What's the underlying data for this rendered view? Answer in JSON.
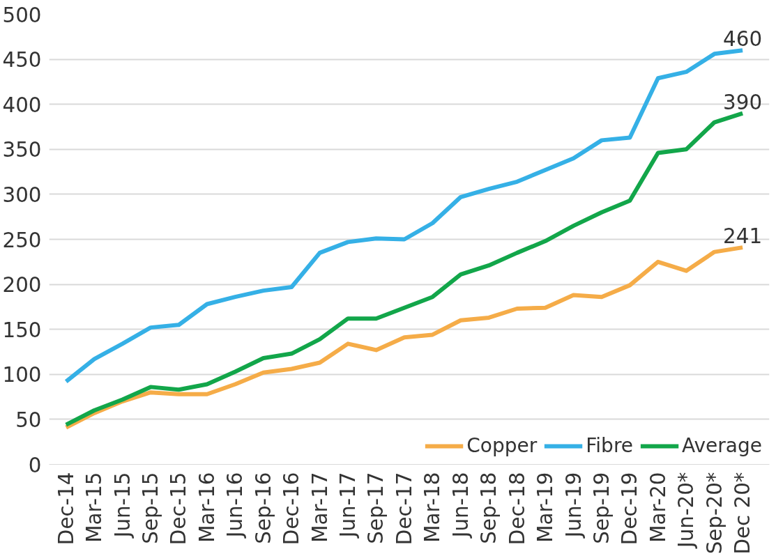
{
  "chart_data": {
    "type": "line",
    "categories": [
      "Dec-14",
      "Mar-15",
      "Jun-15",
      "Sep-15",
      "Dec-15",
      "Mar-16",
      "Jun-16",
      "Sep-16",
      "Dec-16",
      "Mar-17",
      "Jun-17",
      "Sep-17",
      "Dec-17",
      "Mar-18",
      "Jun-18",
      "Sep-18",
      "Dec-18",
      "Mar-19",
      "Jun-19",
      "Sep-19",
      "Dec-19",
      "Mar-20",
      "Jun-20*",
      "Sep-20*",
      "Dec 20*"
    ],
    "series": [
      {
        "name": "Copper",
        "color": "#f5ac48",
        "values": [
          41,
          57,
          70,
          80,
          78,
          78,
          89,
          102,
          106,
          113,
          134,
          127,
          141,
          144,
          160,
          163,
          173,
          174,
          188,
          186,
          199,
          225,
          215,
          236,
          241
        ],
        "value_labels": [
          null,
          null,
          null,
          null,
          null,
          null,
          null,
          null,
          null,
          null,
          null,
          null,
          null,
          null,
          null,
          null,
          null,
          null,
          null,
          null,
          null,
          null,
          null,
          null,
          "241"
        ]
      },
      {
        "name": "Fibre",
        "color": "#35b0e6",
        "values": [
          92,
          117,
          134,
          152,
          155,
          178,
          186,
          193,
          197,
          235,
          247,
          251,
          250,
          268,
          297,
          306,
          314,
          327,
          340,
          360,
          363,
          429,
          436,
          456,
          460
        ],
        "value_labels": [
          null,
          null,
          null,
          null,
          null,
          null,
          null,
          null,
          null,
          null,
          null,
          null,
          null,
          null,
          null,
          null,
          null,
          null,
          null,
          null,
          null,
          null,
          null,
          null,
          "460"
        ]
      },
      {
        "name": "Average",
        "color": "#12a64a",
        "values": [
          44,
          60,
          72,
          86,
          83,
          89,
          103,
          118,
          123,
          139,
          162,
          162,
          174,
          186,
          211,
          221,
          235,
          248,
          265,
          280,
          293,
          346,
          350,
          380,
          390
        ],
        "value_labels": [
          null,
          null,
          null,
          null,
          null,
          null,
          null,
          null,
          null,
          null,
          null,
          null,
          null,
          null,
          null,
          null,
          null,
          null,
          null,
          null,
          null,
          null,
          null,
          null,
          "390"
        ]
      }
    ],
    "ylim": [
      0,
      500
    ],
    "yticks": [
      0,
      50,
      100,
      150,
      200,
      250,
      300,
      350,
      400,
      450,
      500
    ],
    "grid": "y",
    "legend": "bottom right",
    "marker": "none",
    "line_style": "solid"
  }
}
